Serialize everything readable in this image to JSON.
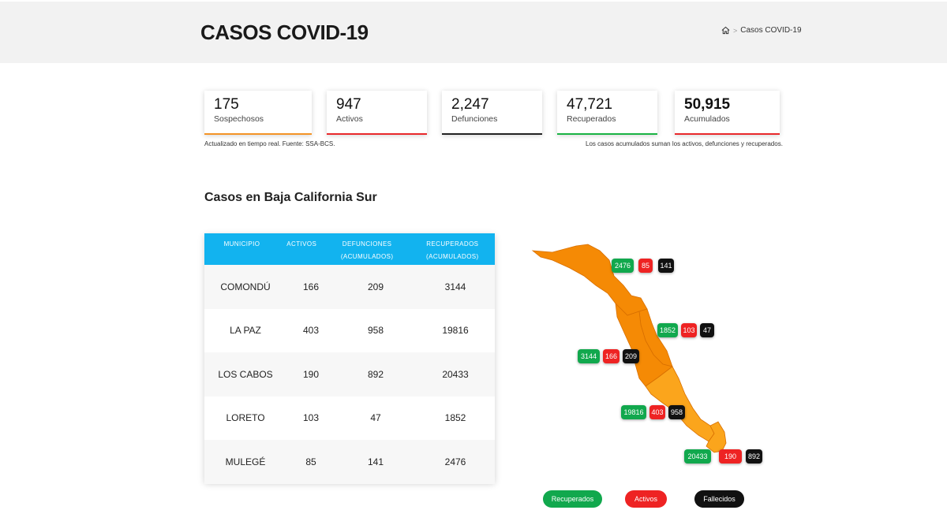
{
  "header": {
    "title": "CASOS COVID-19",
    "breadcrumb": {
      "current": "Casos COVID-19",
      "separator": ">"
    }
  },
  "stats": [
    {
      "value": "175",
      "label": "Sospechosos",
      "color": "#f39325"
    },
    {
      "value": "947",
      "label": "Activos",
      "color": "#e8282b"
    },
    {
      "value": "2,247",
      "label": "Defunciones",
      "color": "#222222"
    },
    {
      "value": "47,721",
      "label": "Recuperados",
      "color": "#19b343"
    },
    {
      "value": "50,915",
      "label": "Acumulados",
      "color": "#e8282b"
    }
  ],
  "notes": {
    "left": "Actualizado en tiempo real. Fuente: SSA-BCS.",
    "right": "Los casos acumulados suman los activos, defunciones y recuperados."
  },
  "section": {
    "title": "Casos en Baja California Sur"
  },
  "table": {
    "headers": [
      "MUNICIPIO",
      "ACTIVOS",
      "DEFUNCIONES (ACUMULADOS)",
      "RECUPERADOS (ACUMULADOS)"
    ],
    "rows": [
      [
        "COMONDÚ",
        "166",
        "209",
        "3144"
      ],
      [
        "LA PAZ",
        "403",
        "958",
        "19816"
      ],
      [
        "LOS CABOS",
        "190",
        "892",
        "20433"
      ],
      [
        "LORETO",
        "103",
        "47",
        "1852"
      ],
      [
        "MULEGÉ",
        "85",
        "141",
        "2476"
      ]
    ]
  },
  "map": {
    "municipios": [
      {
        "name": "MULEGÉ",
        "recuperados": "2476",
        "activos": "85",
        "fallecidos": "141"
      },
      {
        "name": "LORETO",
        "recuperados": "1852",
        "activos": "103",
        "fallecidos": "47"
      },
      {
        "name": "COMONDÚ",
        "recuperados": "3144",
        "activos": "166",
        "fallecidos": "209"
      },
      {
        "name": "LA PAZ",
        "recuperados": "19816",
        "activos": "403",
        "fallecidos": "958"
      },
      {
        "name": "LOS CABOS",
        "recuperados": "20433",
        "activos": "190",
        "fallecidos": "892"
      }
    ],
    "colors": {
      "north": "#f58a05",
      "south": "#fba51c",
      "border": "#d86f00"
    }
  },
  "legend": {
    "recuperados": "Recuperados",
    "activos": "Activos",
    "fallecidos": "Fallecidos",
    "colors": {
      "recuperados": "#11a84d",
      "activos": "#ee2323",
      "fallecidos": "#111111"
    }
  }
}
